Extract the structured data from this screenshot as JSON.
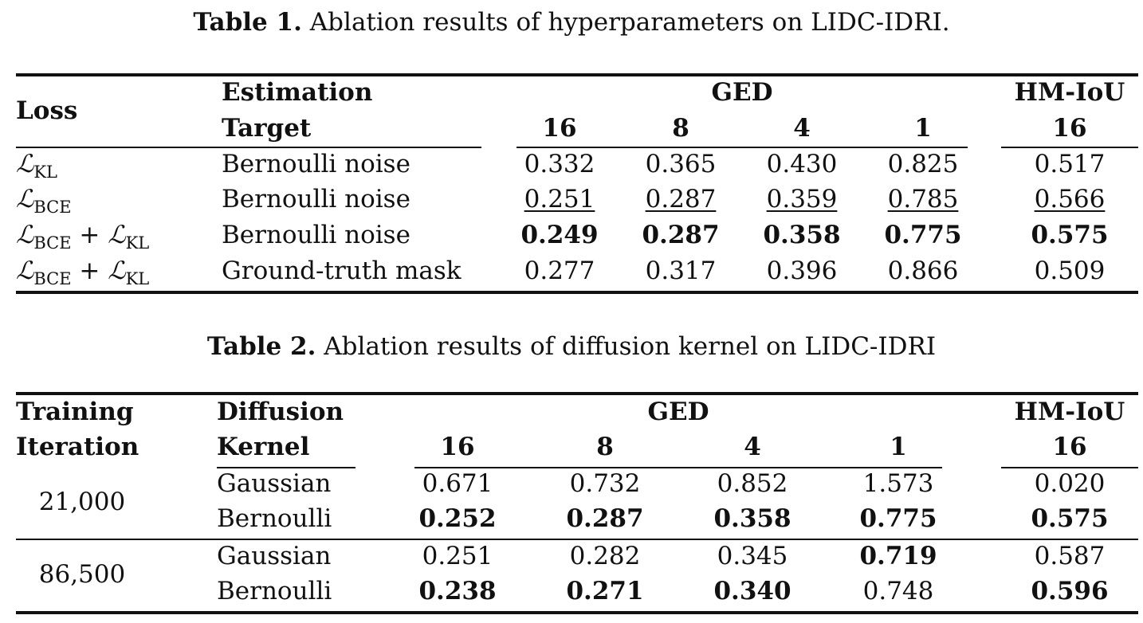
{
  "table1": {
    "caption_label": "Table 1.",
    "caption_text": " Ablation results of hyperparameters on LIDC-IDRI.",
    "header": {
      "loss": "Loss",
      "estimation_line1": "Estimation",
      "estimation_line2": "Target",
      "ged": "GED",
      "hmiou": "HM-IoU",
      "k16": "16",
      "k8": "8",
      "k4": "4",
      "k1": "1",
      "hm16": "16"
    },
    "rows": [
      {
        "loss_symbol_1": "ℒ",
        "loss_sub_1": "KL",
        "loss_plus": "",
        "loss_symbol_2": "",
        "loss_sub_2": "",
        "target": "Bernoulli noise",
        "v16": "0.332",
        "v8": "0.365",
        "v4": "0.430",
        "v1": "0.825",
        "hm": "0.517"
      },
      {
        "loss_symbol_1": "ℒ",
        "loss_sub_1": "BCE",
        "loss_plus": "",
        "loss_symbol_2": "",
        "loss_sub_2": "",
        "target": "Bernoulli noise",
        "v16": "0.251",
        "v8": "0.287",
        "v4": "0.359",
        "v1": "0.785",
        "hm": "0.566"
      },
      {
        "loss_symbol_1": "ℒ",
        "loss_sub_1": "BCE",
        "loss_plus": " + ",
        "loss_symbol_2": "ℒ",
        "loss_sub_2": "KL",
        "target": "Bernoulli noise",
        "v16": "0.249",
        "v8": "0.287",
        "v4": "0.358",
        "v1": "0.775",
        "hm": "0.575"
      },
      {
        "loss_symbol_1": "ℒ",
        "loss_sub_1": "BCE",
        "loss_plus": " + ",
        "loss_symbol_2": "ℒ",
        "loss_sub_2": "KL",
        "target": "Ground-truth mask",
        "v16": "0.277",
        "v8": "0.317",
        "v4": "0.396",
        "v1": "0.866",
        "hm": "0.509"
      }
    ]
  },
  "table2": {
    "caption_label": "Table 2.",
    "caption_text": " Ablation results of diffusion kernel on LIDC-IDRI",
    "header": {
      "training_line1": "Training",
      "training_line2": "Iteration",
      "diffusion_line1": "Diffusion",
      "diffusion_line2": "Kernel",
      "ged": "GED",
      "hmiou": "HM-IoU",
      "k16": "16",
      "k8": "8",
      "k4": "4",
      "k1": "1",
      "hm16": "16"
    },
    "groups": [
      {
        "iteration": "21,000",
        "rows": [
          {
            "kernel": "Gaussian",
            "v16": "0.671",
            "v8": "0.732",
            "v4": "0.852",
            "v1": "1.573",
            "hm": "0.020"
          },
          {
            "kernel": "Bernoulli",
            "v16": "0.252",
            "v8": "0.287",
            "v4": "0.358",
            "v1": "0.775",
            "hm": "0.575"
          }
        ]
      },
      {
        "iteration": "86,500",
        "rows": [
          {
            "kernel": "Gaussian",
            "v16": "0.251",
            "v8": "0.282",
            "v4": "0.345",
            "v1": "0.719",
            "hm": "0.587"
          },
          {
            "kernel": "Bernoulli",
            "v16": "0.238",
            "v8": "0.271",
            "v4": "0.340",
            "v1": "0.748",
            "hm": "0.596"
          }
        ]
      }
    ]
  }
}
